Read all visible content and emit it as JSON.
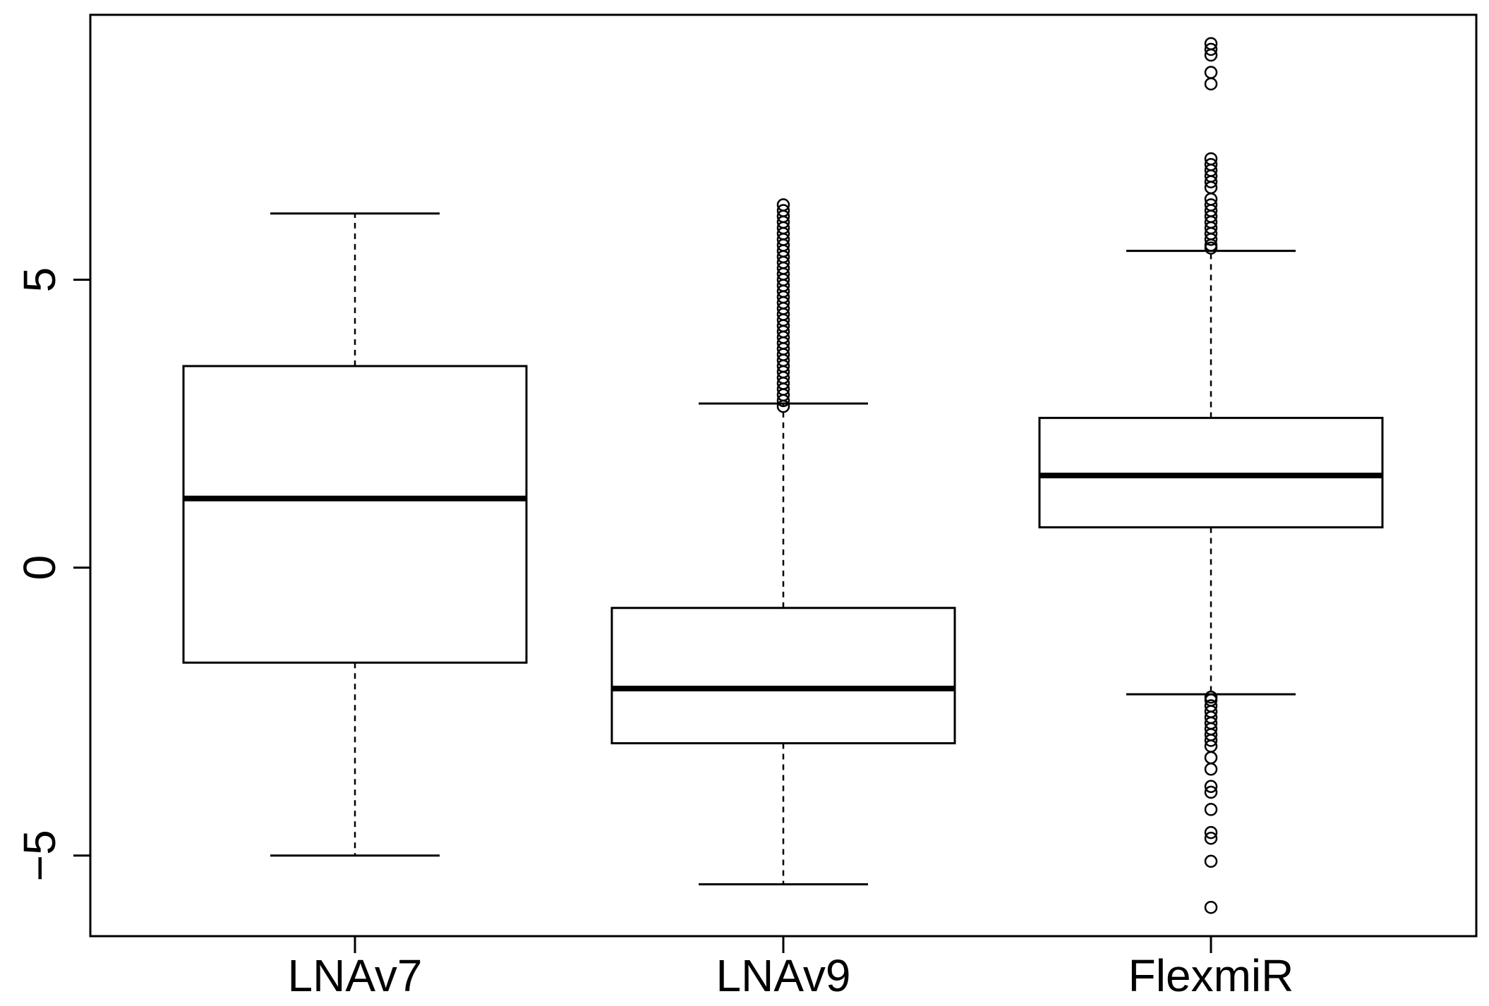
{
  "chart_data": {
    "type": "boxplot",
    "title": "",
    "xlabel": "",
    "ylabel": "",
    "ylim": [
      -6.4,
      9.6
    ],
    "yticks": [
      {
        "value": -5,
        "label": "−5"
      },
      {
        "value": 0,
        "label": "0"
      },
      {
        "value": 5,
        "label": "5"
      }
    ],
    "categories": [
      "LNAv7",
      "LNAv9",
      "FlexmiR"
    ],
    "boxes": [
      {
        "name": "LNAv7",
        "whisker_low": -5.0,
        "q1": -1.65,
        "median": 1.2,
        "q3": 3.5,
        "whisker_high": 6.15,
        "outliers": []
      },
      {
        "name": "LNAv9",
        "whisker_low": -5.5,
        "q1": -3.05,
        "median": -2.1,
        "q3": -0.7,
        "whisker_high": 2.85,
        "outliers": [
          2.8,
          2.9,
          3.0,
          3.1,
          3.2,
          3.3,
          3.4,
          3.5,
          3.6,
          3.7,
          3.8,
          3.9,
          4.0,
          4.1,
          4.2,
          4.3,
          4.4,
          4.5,
          4.6,
          4.7,
          4.8,
          4.9,
          5.0,
          5.1,
          5.2,
          5.3,
          5.4,
          5.5,
          5.6,
          5.7,
          5.8,
          5.9,
          6.0,
          6.1,
          6.2,
          6.3
        ]
      },
      {
        "name": "FlexmiR",
        "whisker_low": -2.2,
        "q1": 0.7,
        "median": 1.6,
        "q3": 2.6,
        "whisker_high": 5.5,
        "outliers": [
          5.55,
          5.6,
          5.7,
          5.8,
          5.9,
          6.0,
          6.1,
          6.2,
          6.3,
          6.4,
          6.6,
          6.7,
          6.8,
          6.9,
          7.0,
          7.1,
          8.4,
          8.6,
          8.9,
          9.0,
          9.1,
          -2.25,
          -2.3,
          -2.4,
          -2.5,
          -2.6,
          -2.7,
          -2.8,
          -2.9,
          -3.0,
          -3.1,
          -3.3,
          -3.5,
          -3.8,
          -3.9,
          -4.2,
          -4.6,
          -4.7,
          -5.1,
          -5.9
        ]
      }
    ]
  }
}
